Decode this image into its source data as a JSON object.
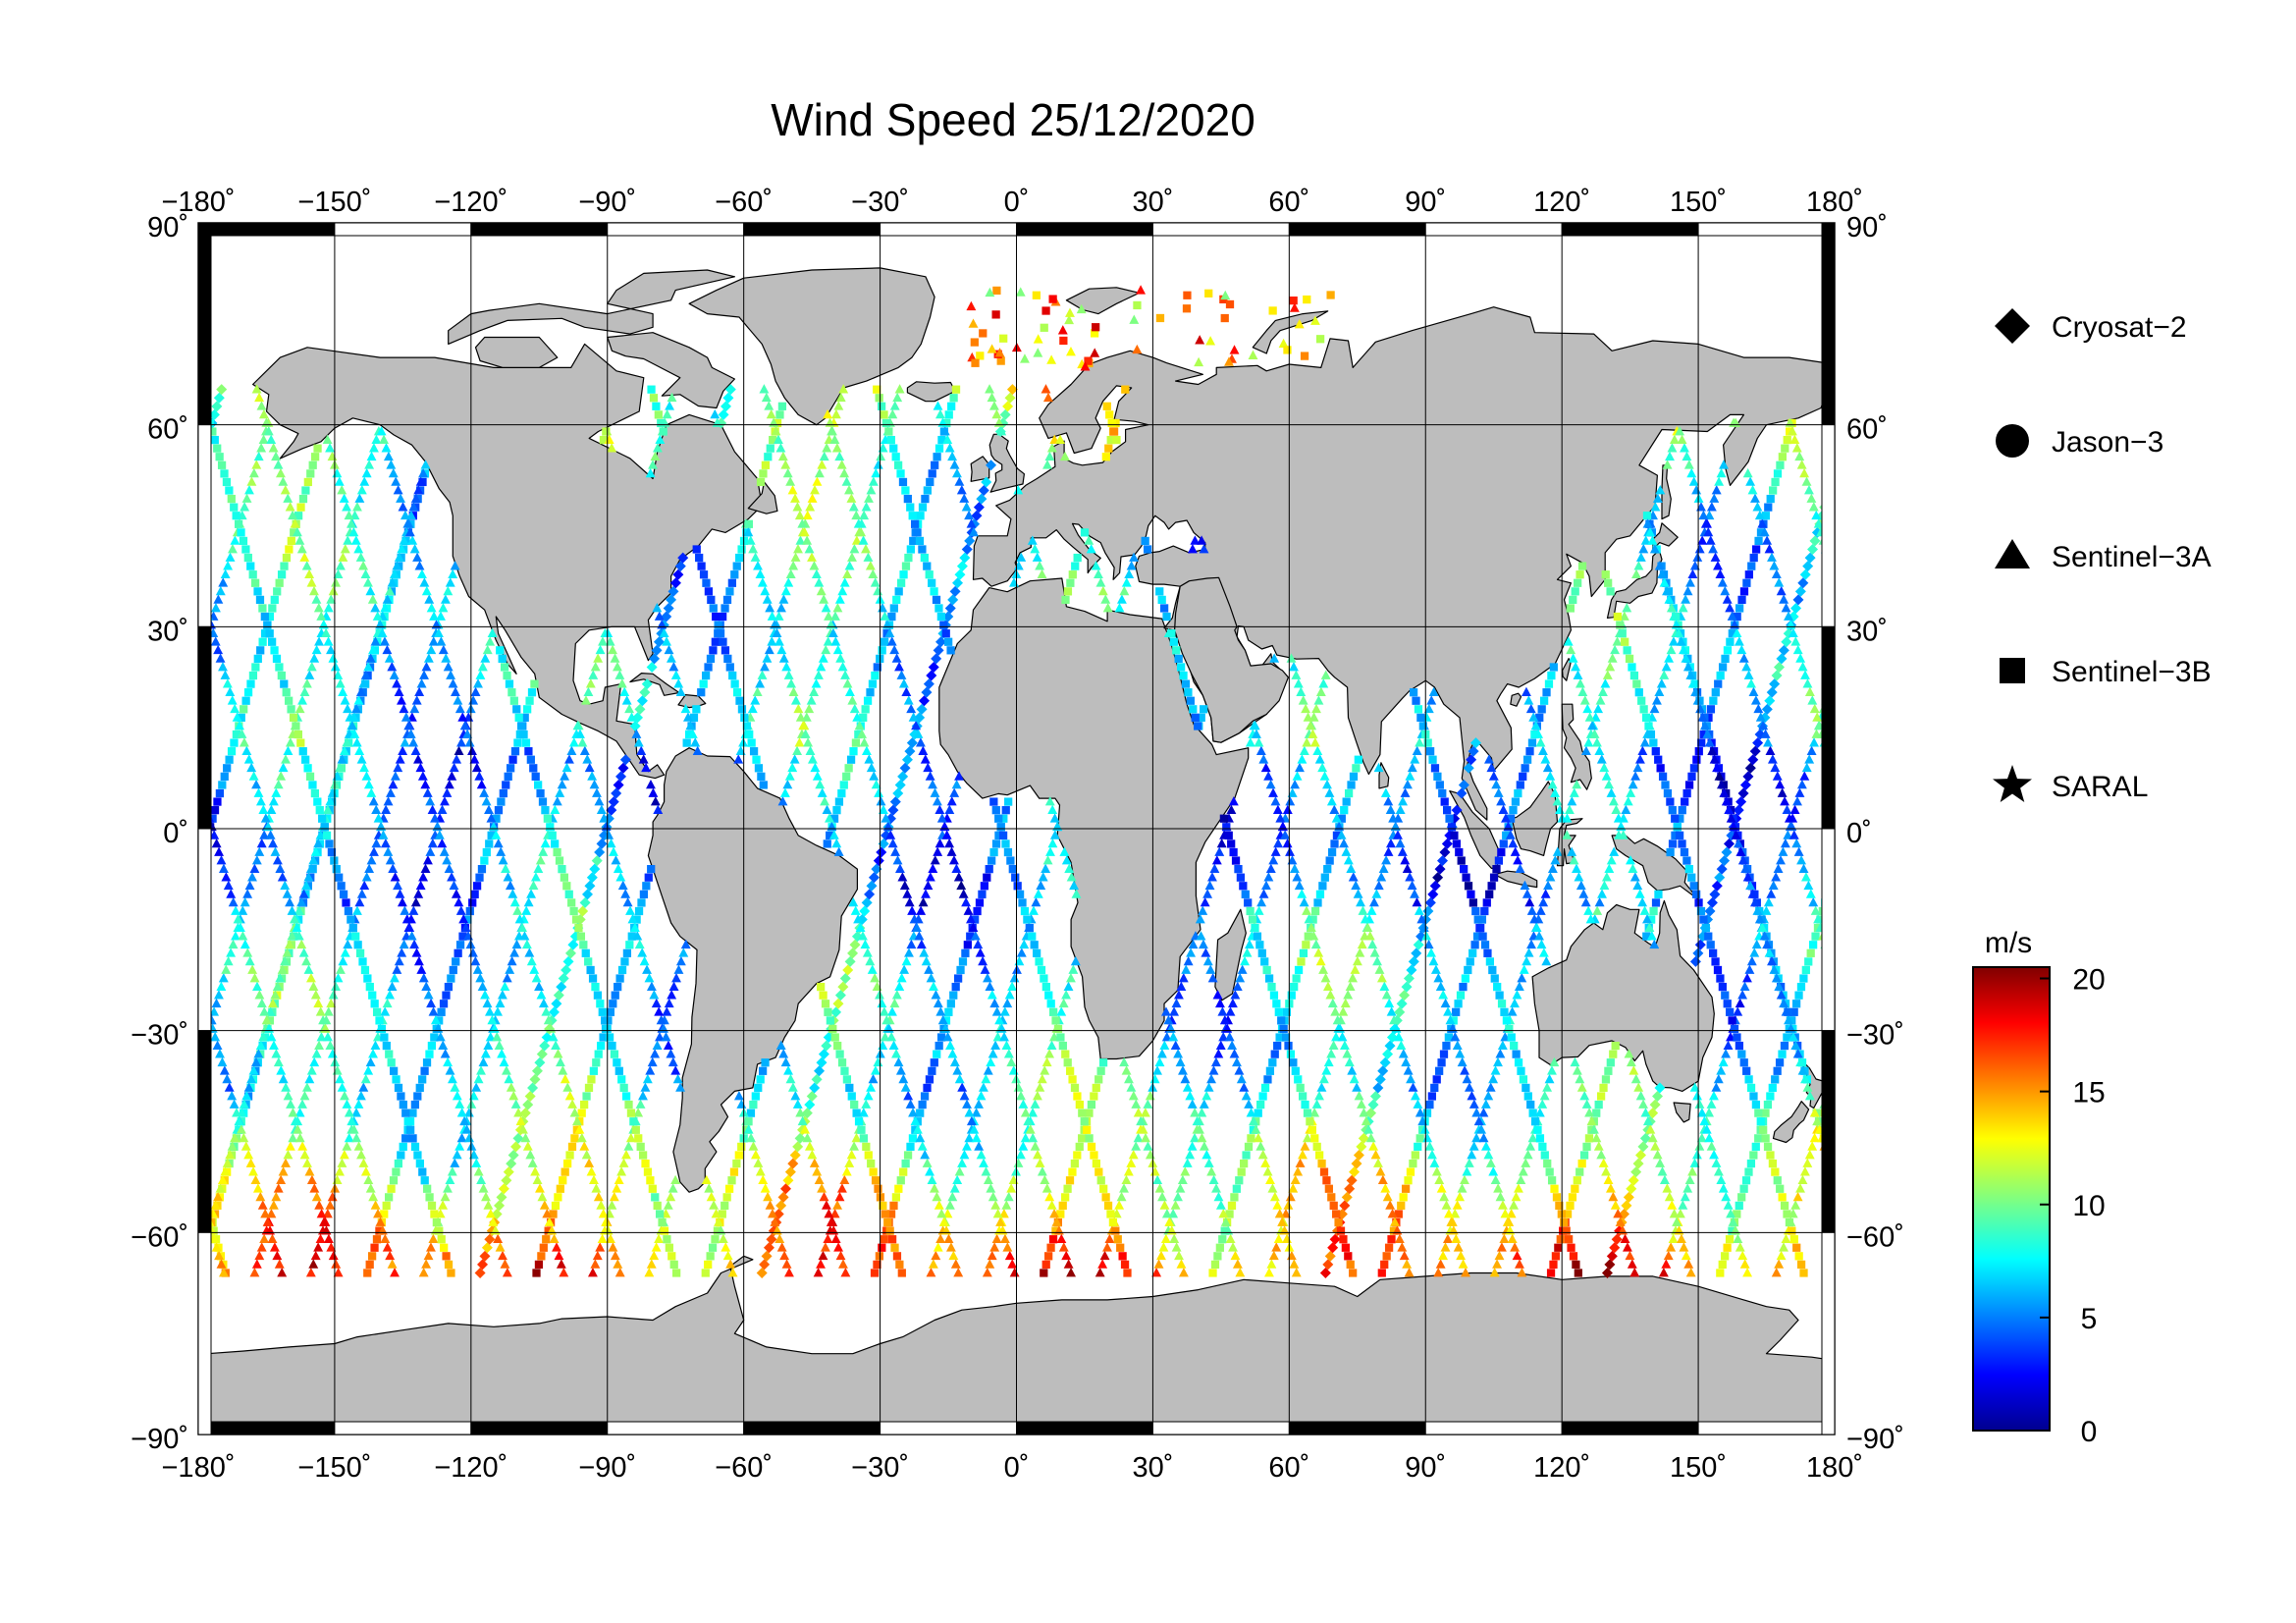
{
  "title": "Wind Speed 25/12/2020",
  "map": {
    "projection": "plate-carree",
    "lon_range": [
      -180,
      180
    ],
    "lat_range": [
      -90,
      90
    ],
    "lon_ticks": [
      "−180˚",
      "−150˚",
      "−120˚",
      "−90˚",
      "−60˚",
      "−30˚",
      "0˚",
      "30˚",
      "60˚",
      "90˚",
      "120˚",
      "150˚",
      "180˚"
    ],
    "lat_ticks_left": [
      "90˚",
      "60˚",
      "30˚",
      "0˚",
      "−30˚",
      "−60˚",
      "−90˚"
    ],
    "lat_ticks_right": [
      "90˚",
      "60˚",
      "30˚",
      "0˚",
      "−30˚",
      "−60˚",
      "−90˚"
    ],
    "land_color": "#bdbdbd",
    "ocean_color": "#ffffff"
  },
  "legend": {
    "items": [
      {
        "label": "Cryosat−2",
        "symbol": "diamond"
      },
      {
        "label": "Jason−3",
        "symbol": "circle"
      },
      {
        "label": "Sentinel−3A",
        "symbol": "triangle"
      },
      {
        "label": "Sentinel−3B",
        "symbol": "square"
      },
      {
        "label": "SARAL",
        "symbol": "star"
      }
    ]
  },
  "colorbar": {
    "unit": "m/s",
    "min": 0,
    "max": 20.5,
    "ticks": [
      "0",
      "5",
      "10",
      "15",
      "20"
    ],
    "tick_values": [
      0,
      5,
      10,
      15,
      20
    ],
    "colormap": "jet"
  }
}
